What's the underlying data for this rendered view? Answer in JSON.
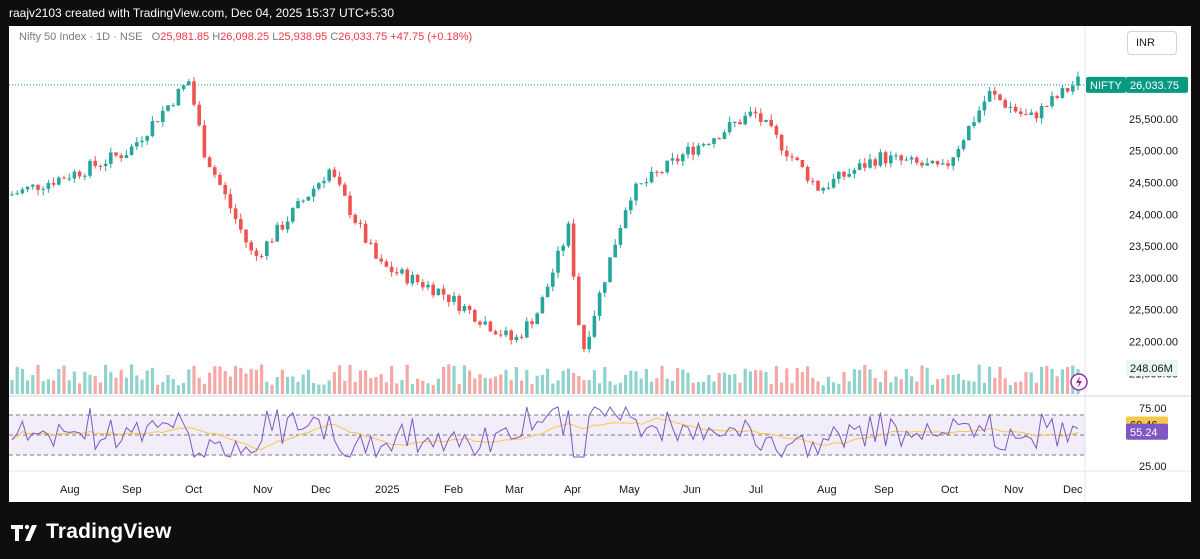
{
  "header": {
    "creator_line": "raajv2103 created with TradingView.com, Dec 04, 2025 15:37 UTC+5:30"
  },
  "legend": {
    "symbol": "Nifty 50 Index · 1D · NSE",
    "open_label": "O",
    "open": "25,981.85",
    "high_label": "H",
    "high": "26,098.25",
    "low_label": "L",
    "low": "25,938.95",
    "close_label": "C",
    "close": "26,033.75",
    "change": "+47.75 (+0.18%)"
  },
  "currency_button": "INR",
  "price_axis": {
    "ticks": [
      "25,500.00",
      "25,000.00",
      "24,500.00",
      "24,000.00",
      "23,500.00",
      "23,000.00",
      "22,500.00",
      "22,000.00",
      "21,500.00"
    ],
    "symbol_tag": "NIFTY",
    "last_price_tag": "26,033.75",
    "volume_tag": "248.06M"
  },
  "rsi_axis": {
    "ticks": [
      "75.00",
      "25.00"
    ],
    "rsi_tag": "60.46",
    "rsi_ma_tag": "55.24"
  },
  "time_axis": {
    "labels": [
      "Aug",
      "Sep",
      "Oct",
      "Nov",
      "Dec",
      "2025",
      "Feb",
      "Mar",
      "Apr",
      "May",
      "Jun",
      "Jul",
      "Aug",
      "Sep",
      "Oct",
      "Nov",
      "Dec"
    ]
  },
  "footer": {
    "brand": "TradingView"
  },
  "colors": {
    "up": "#26a69a",
    "down": "#ef5350",
    "rsi_line": "#7e57c2",
    "rsi_ma": "#f5c74a",
    "price_line": "#089981"
  },
  "chart_data": {
    "type": "candlestick",
    "price_range": [
      21300,
      26300
    ],
    "anchors": [
      [
        "Jul 2024",
        24300
      ],
      [
        "Aug 2024",
        24700
      ],
      [
        "Sep 2024",
        25000
      ],
      [
        "late Sep 2024",
        26100
      ],
      [
        "Oct 2024",
        25000
      ],
      [
        "Nov 2024",
        23300
      ],
      [
        "Dec 2024",
        24700
      ],
      [
        "Jan 2025",
        23200
      ],
      [
        "Feb 2025",
        22800
      ],
      [
        "Mar 2025",
        22000
      ],
      [
        "Mar 2025",
        22500
      ],
      [
        "Apr 2025",
        23800
      ],
      [
        "Apr 2025",
        21800
      ],
      [
        "May 2025",
        24300
      ],
      [
        "Jun 2025",
        25000
      ],
      [
        "Jul 2025",
        25600
      ],
      [
        "Aug 2025",
        24400
      ],
      [
        "Sep 2025",
        24900
      ],
      [
        "Oct 2025",
        24700
      ],
      [
        "Oct 2025",
        25900
      ],
      [
        "Nov 2025",
        25500
      ],
      [
        "Dec 2025",
        26100
      ]
    ],
    "last_close": 26033.75,
    "last_volume_m": 248.06,
    "rsi": 60.46,
    "rsi_ma": 55.24,
    "rsi_levels": [
      70,
      50,
      30
    ],
    "rsi_axis": [
      25,
      75
    ]
  }
}
